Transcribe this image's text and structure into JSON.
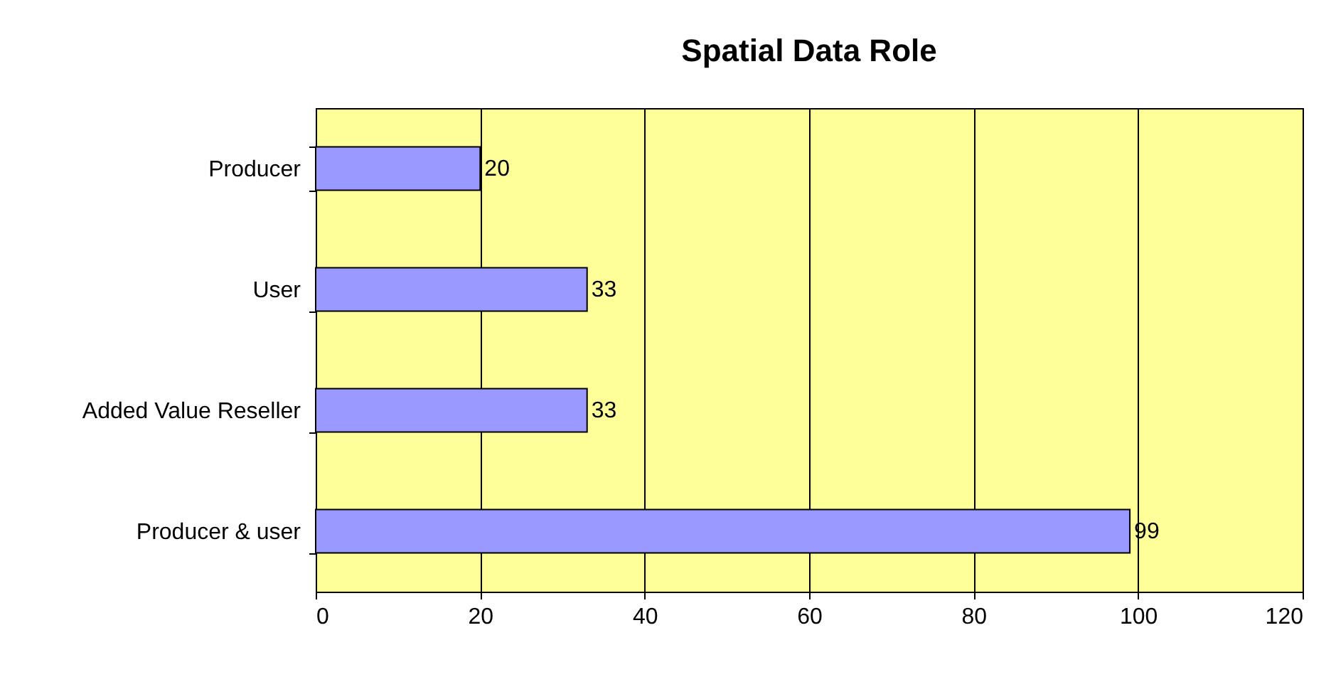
{
  "chart_data": {
    "type": "bar",
    "orientation": "horizontal",
    "title": "Spatial Data Role",
    "categories": [
      "Producer",
      "User",
      "Added Value Reseller",
      "Producer & user"
    ],
    "values": [
      20,
      33,
      33,
      99
    ],
    "color": "#9999ff",
    "xlim": [
      0,
      120
    ],
    "xticks": [
      0,
      20,
      40,
      60,
      80,
      100,
      120
    ],
    "grid": "x",
    "data_labels": true
  }
}
